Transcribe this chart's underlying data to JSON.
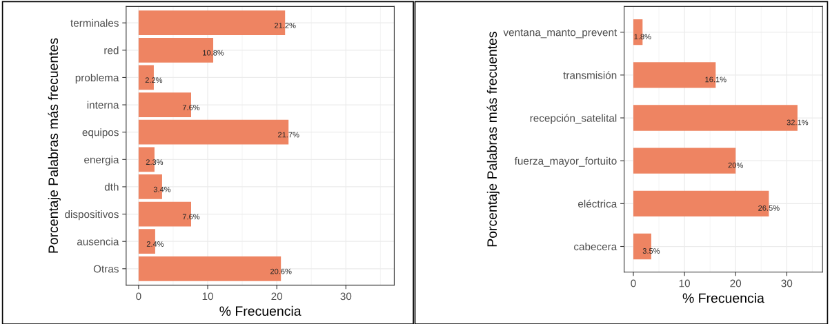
{
  "chart_data": [
    {
      "type": "bar",
      "orientation": "horizontal",
      "xlabel": "% Frecuencia",
      "ylabel": "Porcentaje Palabras más frecuentes",
      "categories": [
        "terminales",
        "red",
        "problema",
        "interna",
        "equipos",
        "energia",
        "dth",
        "dispositivos",
        "ausencia",
        "Otras"
      ],
      "values": [
        21.2,
        10.8,
        2.2,
        7.6,
        21.7,
        2.3,
        3.4,
        7.6,
        2.4,
        20.6
      ],
      "value_labels": [
        "21.2%",
        "10.8%",
        "2.2%",
        "7.6%",
        "21.7%",
        "2.3%",
        "3.4%",
        "7.6%",
        "2.4%",
        "20.6%"
      ],
      "color": "#ee8462",
      "xlim": [
        -1.8,
        37
      ],
      "xticks": [
        0,
        10,
        20,
        30
      ],
      "grid": true
    },
    {
      "type": "bar",
      "orientation": "horizontal",
      "xlabel": "% Frecuencia",
      "ylabel": "Porcentaje Palabras más frecuentes",
      "categories": [
        "ventana_manto_prevent",
        "transmisión",
        "recepción_satelital",
        "fuerza_mayor_fortuito",
        "eléctrica",
        "cabecera"
      ],
      "values": [
        1.8,
        16.1,
        32.1,
        20,
        26.5,
        3.5
      ],
      "value_labels": [
        "1.8%",
        "16.1%",
        "32.1%",
        "20%",
        "26.5%",
        "3.5%"
      ],
      "color": "#ee8462",
      "xlim": [
        -1.8,
        37
      ],
      "xticks": [
        0,
        10,
        20,
        30
      ],
      "grid": true
    }
  ]
}
